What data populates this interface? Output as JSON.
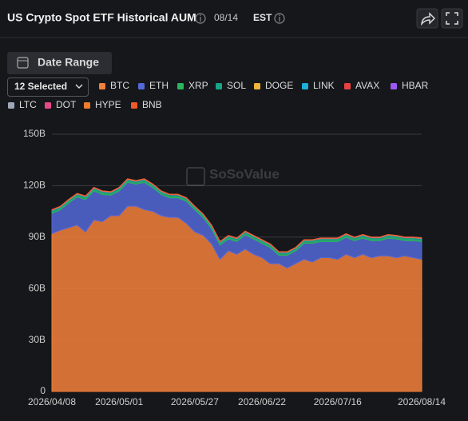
{
  "chart_data": {
    "type": "stacked-area",
    "title": "US Crypto Spot ETF Historical AUM",
    "date": "08/14",
    "timezone": "EST",
    "date_range_button": "Date Range",
    "selector": "12 Selected",
    "watermark": "SoSoValue",
    "categories": [
      "2026/04/08",
      null,
      null,
      null,
      null,
      null,
      null,
      null,
      "2026/05/01",
      null,
      null,
      null,
      null,
      null,
      null,
      null,
      null,
      "2026/05/27",
      null,
      null,
      null,
      null,
      null,
      null,
      null,
      "2026/06/22",
      null,
      null,
      null,
      null,
      null,
      null,
      null,
      null,
      "2026/07/16",
      null,
      null,
      null,
      null,
      null,
      null,
      null,
      null,
      null,
      "2026/08/14"
    ],
    "ylim": [
      0,
      150
    ],
    "yticks": [
      0,
      {
        "value": 30,
        "label": "30B"
      },
      {
        "value": 60,
        "label": "60B"
      },
      {
        "value": 90,
        "label": "90B"
      },
      {
        "value": 120,
        "label": "120B"
      },
      {
        "value": 150,
        "label": "150B"
      }
    ],
    "grid": true,
    "series": [
      {
        "name": "BTC",
        "color": "#f4803c",
        "values": [
          92,
          94,
          95.5,
          97,
          93,
          100,
          99,
          102.5,
          102.5,
          108,
          108,
          106,
          105,
          102.5,
          101.5,
          101.5,
          98,
          93,
          91,
          86,
          77,
          82,
          80,
          83,
          80,
          78,
          74.5,
          74.5,
          72,
          74.5,
          77,
          75.5,
          78,
          78,
          77,
          80,
          78,
          80,
          78,
          79,
          79,
          78,
          79,
          78,
          77
        ]
      },
      {
        "name": "ETH",
        "color": "#5469d8",
        "values": [
          11.9,
          11.9,
          14.4,
          16.4,
          18.9,
          16.9,
          15.9,
          11.9,
          14.4,
          13.9,
          12.9,
          15.9,
          13.9,
          12.4,
          11.4,
          11.4,
          12.9,
          12.9,
          10.4,
          8.9,
          8.4,
          6.9,
          7.4,
          8.4,
          8.9,
          8.4,
          9.4,
          4.9,
          7.4,
          7.4,
          9.4,
          10.9,
          9.4,
          9.4,
          10.4,
          9.9,
          9.9,
          9.4,
          9.9,
          8.9,
          10.4,
          10.9,
          8.9,
          9.9,
          10.4
        ]
      },
      {
        "name": "XRP",
        "color": "#2bb55c",
        "values": [
          0.8,
          0.8,
          0.8,
          0.8,
          0.8,
          0.8,
          0.8,
          0.8,
          0.8,
          0.8,
          0.8,
          0.8,
          0.8,
          0.8,
          0.8,
          0.8,
          0.8,
          0.8,
          0.8,
          0.8,
          0.8,
          0.8,
          0.8,
          0.8,
          0.8,
          0.8,
          0.8,
          0.8,
          0.8,
          0.8,
          0.8,
          0.8,
          0.8,
          0.8,
          0.8,
          0.8,
          0.8,
          0.8,
          0.8,
          0.8,
          0.8,
          0.8,
          0.8,
          0.8,
          0.8
        ]
      },
      {
        "name": "SOL",
        "color": "#17a589",
        "values": [
          0.9,
          0.9,
          0.9,
          0.9,
          0.9,
          0.9,
          0.9,
          0.9,
          0.9,
          0.9,
          0.9,
          0.9,
          0.9,
          0.9,
          0.9,
          0.9,
          0.9,
          0.9,
          0.9,
          0.9,
          0.9,
          0.9,
          0.9,
          0.9,
          0.9,
          0.9,
          0.9,
          0.9,
          0.9,
          0.9,
          0.9,
          0.9,
          0.9,
          0.9,
          0.9,
          0.9,
          0.9,
          0.9,
          0.9,
          0.9,
          0.9,
          0.9,
          0.9,
          0.9,
          0.9
        ]
      },
      {
        "name": "DOGE",
        "color": "#f0b43c",
        "values": [
          0.05,
          0.05,
          0.05,
          0.05,
          0.05,
          0.05,
          0.05,
          0.05,
          0.05,
          0.05,
          0.05,
          0.05,
          0.05,
          0.05,
          0.05,
          0.05,
          0.05,
          0.05,
          0.05,
          0.05,
          0.05,
          0.05,
          0.05,
          0.05,
          0.05,
          0.05,
          0.05,
          0.05,
          0.05,
          0.05,
          0.05,
          0.05,
          0.05,
          0.05,
          0.05,
          0.05,
          0.05,
          0.05,
          0.05,
          0.05,
          0.05,
          0.05,
          0.05,
          0.05,
          0.05
        ]
      },
      {
        "name": "LINK",
        "color": "#1ab0d8",
        "values": [
          0.05,
          0.05,
          0.05,
          0.05,
          0.05,
          0.05,
          0.05,
          0.05,
          0.05,
          0.05,
          0.05,
          0.05,
          0.05,
          0.05,
          0.05,
          0.05,
          0.05,
          0.05,
          0.05,
          0.05,
          0.05,
          0.05,
          0.05,
          0.05,
          0.05,
          0.05,
          0.05,
          0.05,
          0.05,
          0.05,
          0.05,
          0.05,
          0.05,
          0.05,
          0.05,
          0.05,
          0.05,
          0.05,
          0.05,
          0.05,
          0.05,
          0.05,
          0.05,
          0.05,
          0.05
        ]
      },
      {
        "name": "AVAX",
        "color": "#e84142",
        "values": [
          0.05,
          0.05,
          0.05,
          0.05,
          0.05,
          0.05,
          0.05,
          0.05,
          0.05,
          0.05,
          0.05,
          0.05,
          0.05,
          0.05,
          0.05,
          0.05,
          0.05,
          0.05,
          0.05,
          0.05,
          0.05,
          0.05,
          0.05,
          0.05,
          0.05,
          0.05,
          0.05,
          0.05,
          0.05,
          0.05,
          0.05,
          0.05,
          0.05,
          0.05,
          0.05,
          0.05,
          0.05,
          0.05,
          0.05,
          0.05,
          0.05,
          0.05,
          0.05,
          0.05,
          0.05
        ]
      },
      {
        "name": "HBAR",
        "color": "#9b59f5",
        "values": [
          0.05,
          0.05,
          0.05,
          0.05,
          0.05,
          0.05,
          0.05,
          0.05,
          0.05,
          0.05,
          0.05,
          0.05,
          0.05,
          0.05,
          0.05,
          0.05,
          0.05,
          0.05,
          0.05,
          0.05,
          0.05,
          0.05,
          0.05,
          0.05,
          0.05,
          0.05,
          0.05,
          0.05,
          0.05,
          0.05,
          0.05,
          0.05,
          0.05,
          0.05,
          0.05,
          0.05,
          0.05,
          0.05,
          0.05,
          0.05,
          0.05,
          0.05,
          0.05,
          0.05,
          0.05
        ]
      },
      {
        "name": "LTC",
        "color": "#a0a8b8",
        "values": [
          0.05,
          0.05,
          0.05,
          0.05,
          0.05,
          0.05,
          0.05,
          0.05,
          0.05,
          0.05,
          0.05,
          0.05,
          0.05,
          0.05,
          0.05,
          0.05,
          0.05,
          0.05,
          0.05,
          0.05,
          0.05,
          0.05,
          0.05,
          0.05,
          0.05,
          0.05,
          0.05,
          0.05,
          0.05,
          0.05,
          0.05,
          0.05,
          0.05,
          0.05,
          0.05,
          0.05,
          0.05,
          0.05,
          0.05,
          0.05,
          0.05,
          0.05,
          0.05,
          0.05,
          0.05
        ]
      },
      {
        "name": "DOT",
        "color": "#e6498a",
        "values": [
          0.05,
          0.05,
          0.05,
          0.05,
          0.05,
          0.05,
          0.05,
          0.05,
          0.05,
          0.05,
          0.05,
          0.05,
          0.05,
          0.05,
          0.05,
          0.05,
          0.05,
          0.05,
          0.05,
          0.05,
          0.05,
          0.05,
          0.05,
          0.05,
          0.05,
          0.05,
          0.05,
          0.05,
          0.05,
          0.05,
          0.05,
          0.05,
          0.05,
          0.05,
          0.05,
          0.05,
          0.05,
          0.05,
          0.05,
          0.05,
          0.05,
          0.05,
          0.05,
          0.05,
          0.05
        ]
      },
      {
        "name": "HYPE",
        "color": "#f07c2d",
        "values": [
          0.05,
          0.05,
          0.05,
          0.05,
          0.05,
          0.05,
          0.05,
          0.05,
          0.05,
          0.05,
          0.05,
          0.05,
          0.05,
          0.05,
          0.05,
          0.05,
          0.05,
          0.05,
          0.05,
          0.05,
          0.05,
          0.05,
          0.05,
          0.05,
          0.05,
          0.05,
          0.05,
          0.05,
          0.05,
          0.05,
          0.05,
          0.05,
          0.05,
          0.05,
          0.05,
          0.05,
          0.05,
          0.05,
          0.05,
          0.05,
          0.05,
          0.05,
          0.05,
          0.05,
          0.05
        ]
      },
      {
        "name": "BNB",
        "color": "#f05a28",
        "values": [
          0.05,
          0.05,
          0.05,
          0.05,
          0.05,
          0.05,
          0.05,
          0.05,
          0.05,
          0.05,
          0.05,
          0.05,
          0.05,
          0.05,
          0.05,
          0.05,
          0.05,
          0.05,
          0.05,
          0.05,
          0.05,
          0.05,
          0.05,
          0.05,
          0.05,
          0.05,
          0.05,
          0.05,
          0.05,
          0.05,
          0.05,
          0.05,
          0.05,
          0.05,
          0.05,
          0.05,
          0.05,
          0.05,
          0.05,
          0.05,
          0.05,
          0.05,
          0.05,
          0.05,
          0.05
        ]
      }
    ]
  }
}
